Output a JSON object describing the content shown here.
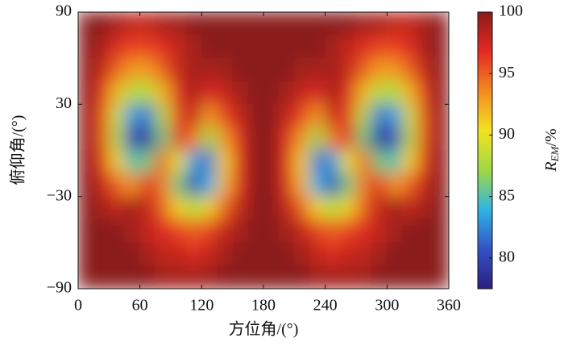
{
  "chart_data": {
    "type": "heatmap",
    "xlabel": "方位角/(°)",
    "ylabel": "俯仰角/(°)",
    "colorbar_label": {
      "symbol": "R",
      "subscript": "EM",
      "unit": "/%"
    },
    "xlim": [
      0,
      360
    ],
    "xticks": [
      0,
      60,
      120,
      180,
      240,
      300,
      360
    ],
    "ylim": [
      -90,
      90
    ],
    "yticks": [
      {
        "value": -90,
        "label": "−90"
      },
      {
        "value": -30,
        "label": "−30"
      },
      30,
      90
    ],
    "zlim": [
      77.5,
      100
    ],
    "zticks": [
      80,
      85,
      90,
      95,
      100
    ],
    "colors": [
      "#2c1f7e",
      "#3452c6",
      "#2fb4e2",
      "#9fd845",
      "#f2e321",
      "#f38a22",
      "#e42a22",
      "#8a1c1a"
    ],
    "z": [
      [
        100,
        100,
        99,
        98,
        98,
        99,
        99,
        100,
        100,
        100,
        100,
        100,
        100,
        100,
        100,
        100,
        100,
        100,
        99,
        99,
        98,
        98,
        99,
        100
      ],
      [
        100,
        99,
        97,
        96,
        96,
        97,
        98,
        99,
        100,
        100,
        100,
        100,
        100,
        100,
        100,
        100,
        99,
        98,
        97,
        96,
        96,
        97,
        99,
        100
      ],
      [
        100,
        98,
        95,
        93,
        93,
        95,
        98,
        99,
        99,
        99,
        100,
        100,
        100,
        100,
        99,
        99,
        99,
        98,
        95,
        93,
        93,
        95,
        98,
        100
      ],
      [
        100,
        97,
        92,
        88,
        88,
        92,
        97,
        99,
        97,
        98,
        99,
        100,
        100,
        99,
        98,
        97,
        99,
        97,
        92,
        88,
        88,
        92,
        97,
        100
      ],
      [
        100,
        96,
        89,
        83,
        82,
        88,
        96,
        98,
        93,
        96,
        98,
        100,
        100,
        98,
        96,
        93,
        98,
        96,
        88,
        82,
        83,
        89,
        96,
        100
      ],
      [
        100,
        96,
        88,
        80,
        79,
        86,
        97,
        94,
        87,
        93,
        97,
        100,
        100,
        97,
        93,
        87,
        94,
        97,
        86,
        79,
        80,
        88,
        96,
        100
      ],
      [
        100,
        97,
        91,
        85,
        86,
        95,
        90,
        83,
        82,
        91,
        97,
        100,
        100,
        97,
        91,
        82,
        83,
        90,
        95,
        86,
        85,
        91,
        97,
        100
      ],
      [
        100,
        98,
        95,
        93,
        97,
        94,
        86,
        80,
        84,
        92,
        97,
        100,
        100,
        97,
        92,
        84,
        80,
        86,
        94,
        97,
        93,
        95,
        98,
        100
      ],
      [
        100,
        99,
        98,
        99,
        98,
        95,
        91,
        88,
        91,
        95,
        98,
        100,
        100,
        98,
        95,
        91,
        88,
        91,
        95,
        98,
        99,
        98,
        99,
        100
      ],
      [
        100,
        100,
        100,
        99,
        98,
        97,
        96,
        95,
        96,
        98,
        99,
        100,
        100,
        99,
        98,
        96,
        95,
        96,
        97,
        98,
        99,
        100,
        100,
        100
      ],
      [
        100,
        100,
        100,
        100,
        99,
        98,
        98,
        97,
        98,
        99,
        100,
        100,
        100,
        100,
        99,
        98,
        97,
        98,
        98,
        99,
        100,
        100,
        100,
        100
      ],
      [
        100,
        100,
        100,
        100,
        100,
        99,
        99,
        99,
        99,
        100,
        100,
        100,
        100,
        100,
        100,
        99,
        99,
        99,
        99,
        100,
        100,
        100,
        100,
        100
      ]
    ]
  }
}
